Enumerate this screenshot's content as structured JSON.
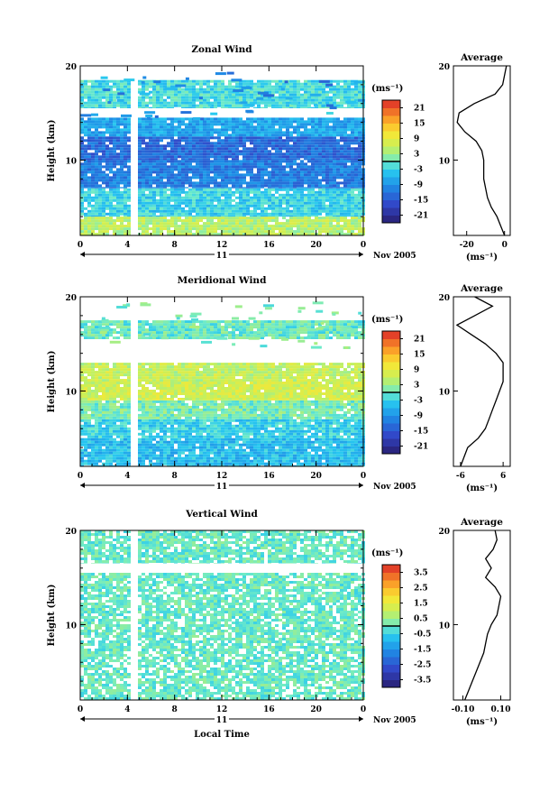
{
  "chart_data": [
    {
      "type": "heatmap",
      "title": "Zonal Wind",
      "ylabel": "Height (km)",
      "x_ticks": [
        "0",
        "4",
        "8",
        "12",
        "16",
        "20",
        "0"
      ],
      "y_ticks": [
        "20",
        "10"
      ],
      "day_label": "11",
      "month_label": "Nov 2005",
      "xlim": [
        0,
        24
      ],
      "ylim": [
        2,
        20
      ],
      "colorbar": {
        "unit": "(ms⁻¹)",
        "ticks": [
          "21",
          "15",
          "9",
          "3",
          "-3",
          "-9",
          "-15",
          "-21"
        ],
        "range": [
          -24,
          24
        ]
      },
      "layers": [
        {
          "from": 2,
          "to": 4,
          "value": 5
        },
        {
          "from": 4,
          "to": 7,
          "value": -3
        },
        {
          "from": 7,
          "to": 10,
          "value": -11
        },
        {
          "from": 10,
          "to": 12.5,
          "value": -13
        },
        {
          "from": 12.5,
          "to": 14.5,
          "value": -7
        },
        {
          "from": 15.5,
          "to": 18.5,
          "value": -2
        }
      ],
      "gap": [
        4.3,
        4.8
      ],
      "average_profile": {
        "title": "Average",
        "xlabel": "(ms⁻¹)",
        "x_ticks": [
          "-20",
          "0"
        ],
        "y_ticks": [
          "20",
          "10"
        ],
        "xlim": [
          -27,
          3
        ],
        "heights": [
          2,
          3,
          4,
          5,
          6,
          7,
          8,
          9,
          10,
          11,
          12,
          13,
          14,
          15,
          16,
          17,
          18,
          19,
          20
        ],
        "values": [
          0,
          -2,
          -4,
          -7,
          -9,
          -10,
          -11,
          -11,
          -11,
          -12,
          -15,
          -21,
          -25,
          -24,
          -16,
          -5,
          -1,
          0,
          1
        ]
      }
    },
    {
      "type": "heatmap",
      "title": "Meridional Wind",
      "ylabel": "Height (km)",
      "x_ticks": [
        "0",
        "4",
        "8",
        "12",
        "16",
        "20",
        "0"
      ],
      "y_ticks": [
        "20",
        "10"
      ],
      "day_label": "11",
      "month_label": "Nov 2005",
      "xlim": [
        0,
        24
      ],
      "ylim": [
        2,
        20
      ],
      "colorbar": {
        "unit": "(ms⁻¹)",
        "ticks": [
          "21",
          "15",
          "9",
          "3",
          "-3",
          "-9",
          "-15",
          "-21"
        ],
        "range": [
          -24,
          24
        ]
      },
      "layers": [
        {
          "from": 2,
          "to": 5,
          "value": -5
        },
        {
          "from": 5,
          "to": 7,
          "value": -3
        },
        {
          "from": 7,
          "to": 9,
          "value": 1
        },
        {
          "from": 9,
          "to": 11,
          "value": 7
        },
        {
          "from": 11,
          "to": 13,
          "value": 6
        },
        {
          "from": 15.5,
          "to": 17.5,
          "value": 0
        }
      ],
      "gap": [
        4.3,
        4.8
      ],
      "average_profile": {
        "title": "Average",
        "xlabel": "(ms⁻¹)",
        "x_ticks": [
          "-6",
          "6"
        ],
        "y_ticks": [
          "20",
          "10"
        ],
        "xlim": [
          -8,
          8
        ],
        "heights": [
          2,
          3,
          4,
          5,
          6,
          7,
          8,
          9,
          10,
          11,
          12,
          13,
          14,
          15,
          16,
          17,
          18,
          19,
          20
        ],
        "values": [
          -6,
          -5,
          -4,
          -1,
          1,
          2,
          3,
          4,
          5,
          6,
          6,
          6,
          4,
          1,
          -3,
          -7,
          -2,
          3,
          -2
        ]
      }
    },
    {
      "type": "heatmap",
      "title": "Vertical Wind",
      "ylabel": "Height (km)",
      "xlabel": "Local Time",
      "x_ticks": [
        "0",
        "4",
        "8",
        "12",
        "16",
        "20",
        "0"
      ],
      "y_ticks": [
        "20",
        "10"
      ],
      "day_label": "11",
      "month_label": "Nov 2005",
      "xlim": [
        0,
        24
      ],
      "ylim": [
        2,
        20
      ],
      "colorbar": {
        "unit": "(ms⁻¹)",
        "ticks": [
          "3.5",
          "2.5",
          "1.5",
          "0.5",
          "-0.5",
          "-1.5",
          "-2.5",
          "-3.5"
        ],
        "range": [
          -4,
          4
        ]
      },
      "layers": [
        {
          "from": 2,
          "to": 15.5,
          "value": 0
        },
        {
          "from": 16.5,
          "to": 20,
          "value": 0
        }
      ],
      "gap": [
        4.3,
        4.8
      ],
      "average_profile": {
        "title": "Average",
        "xlabel": "(ms⁻¹)",
        "x_ticks": [
          "-0.10",
          "0.10"
        ],
        "y_ticks": [
          "20",
          "10"
        ],
        "xlim": [
          -0.15,
          0.15
        ],
        "heights": [
          2,
          3,
          4,
          5,
          6,
          7,
          8,
          9,
          10,
          11,
          12,
          13,
          14,
          15,
          16,
          17,
          18,
          19,
          20
        ],
        "values": [
          -0.09,
          -0.07,
          -0.05,
          -0.03,
          -0.01,
          0.01,
          0.02,
          0.03,
          0.05,
          0.08,
          0.09,
          0.1,
          0.07,
          0.02,
          0.05,
          0.02,
          0.06,
          0.08,
          0.07
        ]
      }
    }
  ]
}
